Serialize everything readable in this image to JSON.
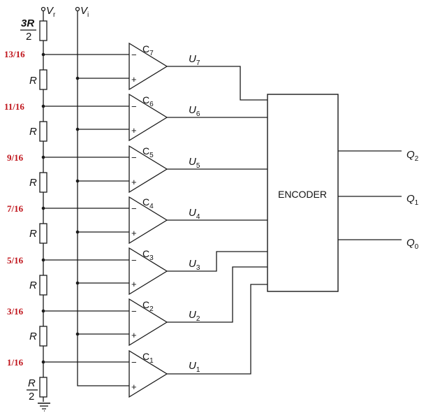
{
  "supply": {
    "vr_main": "V",
    "vr_sub": "r",
    "vi_main": "V",
    "vi_sub": "i"
  },
  "resistors": {
    "top_num": "3R",
    "top_den": "2",
    "middle": "R",
    "bottom_num": "R",
    "bottom_den": "2"
  },
  "taps": [
    "13/16",
    "11/16",
    "9/16",
    "7/16",
    "5/16",
    "3/16",
    "1/16"
  ],
  "comparators": [
    {
      "name": "C",
      "sub": "7",
      "out": "U",
      "out_sub": "7"
    },
    {
      "name": "C",
      "sub": "6",
      "out": "U",
      "out_sub": "6"
    },
    {
      "name": "C",
      "sub": "5",
      "out": "U",
      "out_sub": "5"
    },
    {
      "name": "C",
      "sub": "4",
      "out": "U",
      "out_sub": "4"
    },
    {
      "name": "C",
      "sub": "3",
      "out": "U",
      "out_sub": "3"
    },
    {
      "name": "C",
      "sub": "2",
      "out": "U",
      "out_sub": "2"
    },
    {
      "name": "C",
      "sub": "1",
      "out": "U",
      "out_sub": "1"
    }
  ],
  "inputs": {
    "minus": "−",
    "plus": "+"
  },
  "encoder": {
    "label": "ENCODER"
  },
  "outputs": [
    {
      "main": "Q",
      "sub": "2"
    },
    {
      "main": "Q",
      "sub": "1"
    },
    {
      "main": "Q",
      "sub": "0"
    }
  ],
  "colors": {
    "fraction_labels": "#c0141b",
    "lines": "#1a1a1a"
  }
}
